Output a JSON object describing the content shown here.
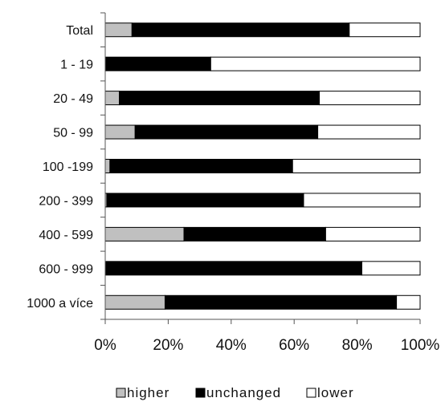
{
  "chart_data": {
    "type": "bar",
    "orientation": "horizontal",
    "stacked": true,
    "percent": true,
    "categories": [
      "Total",
      "1 - 19",
      "20 - 49",
      "50 - 99",
      "100 -199",
      "200 - 399",
      "400 - 599",
      "600 - 999",
      "1000 a více"
    ],
    "series": [
      {
        "name": "higher",
        "color": "#c0c0c0",
        "values": [
          8.5,
          0,
          4.5,
          9.5,
          1.5,
          0.5,
          25.0,
          0,
          19.0
        ]
      },
      {
        "name": "unchanged",
        "color": "#000000",
        "values": [
          69.0,
          33.5,
          63.5,
          58.0,
          58.0,
          62.5,
          45.0,
          81.5,
          73.5
        ]
      },
      {
        "name": "lower",
        "color": "#ffffff",
        "values": [
          22.5,
          66.5,
          32.0,
          32.5,
          40.5,
          37.0,
          30.0,
          18.5,
          7.5
        ]
      }
    ],
    "x_ticks": [
      "0%",
      "20%",
      "40%",
      "60%",
      "80%",
      "100%"
    ],
    "xlim": [
      0,
      100
    ],
    "grid": false,
    "legend_position": "bottom"
  }
}
